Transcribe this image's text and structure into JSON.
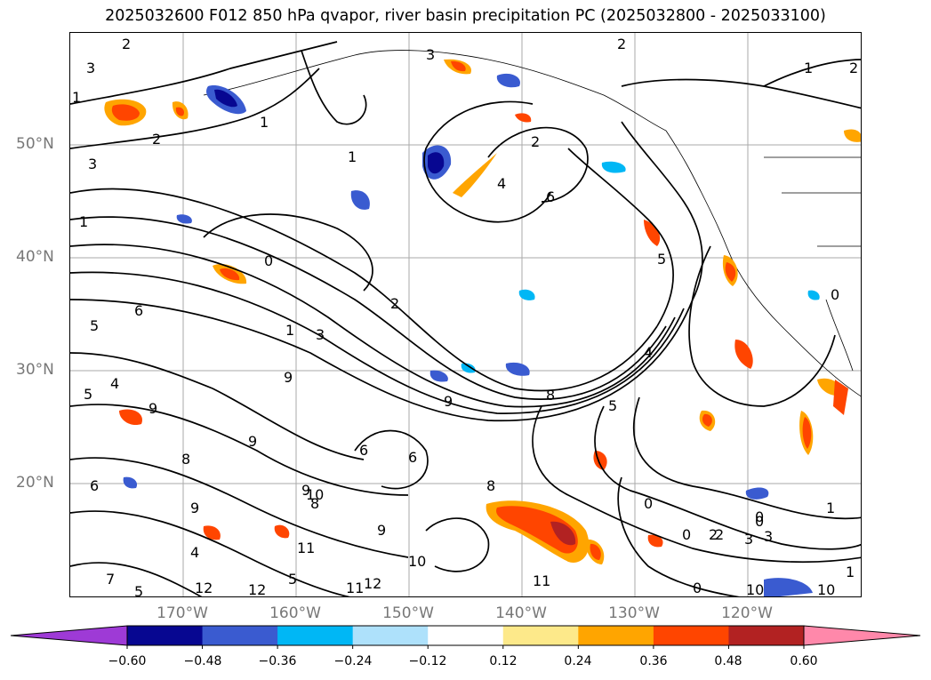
{
  "title": "2025032600 F012 850 hPa qvapor, river basin precipitation PC (2025032800 - 2025033100)",
  "map": {
    "lat_labels": [
      "50°N",
      "40°N",
      "30°N",
      "20°N"
    ],
    "lon_labels": [
      "170°W",
      "160°W",
      "150°W",
      "140°W",
      "130°W",
      "120°W"
    ],
    "gridlines": true,
    "contour_labels": [
      "2",
      "3",
      "1",
      "2",
      "3",
      "1",
      "2",
      "1",
      "2",
      "1",
      "0",
      "1",
      "1",
      "3",
      "2",
      "4",
      "6",
      "0",
      "0",
      "0",
      "0",
      "5",
      "3",
      "2",
      "9",
      "6",
      "5",
      "4",
      "5",
      "9",
      "9",
      "8",
      "8",
      "6",
      "6",
      "5",
      "4",
      "3",
      "2",
      "1",
      "0",
      "2",
      "3",
      "4",
      "5",
      "0",
      "1",
      "10",
      "12",
      "11",
      "11",
      "10",
      "7",
      "8",
      "9",
      "12",
      "5",
      "6",
      "8",
      "9",
      "9",
      "10",
      "12",
      "11",
      "9",
      "10"
    ]
  },
  "colorbar": {
    "tick_labels": [
      "−0.60",
      "−0.48",
      "−0.36",
      "−0.24",
      "−0.12",
      "0.12",
      "0.24",
      "0.36",
      "0.48",
      "0.60"
    ],
    "colors": [
      "#9e3ad6",
      "#070791",
      "#3a5bd0",
      "#00b7f5",
      "#aee1fb",
      "#ffffff",
      "#fde98a",
      "#ffa500",
      "#ff4500",
      "#b22222",
      "#ff88aa"
    ]
  }
}
